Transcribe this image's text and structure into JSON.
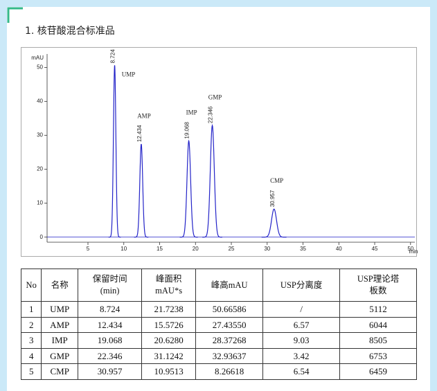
{
  "title": "1. 核苷酸混合标准品",
  "chart_data": {
    "type": "line",
    "y_label": "mAU",
    "x_label": "min",
    "x": [
      8.724,
      12.434,
      19.068,
      22.346,
      30.957
    ],
    "values": [
      50.66586,
      27.4355,
      28.37268,
      32.93637,
      8.26618
    ],
    "peak_labels": [
      "UMP",
      "AMP",
      "IMP",
      "GMP",
      "CMP"
    ],
    "color": "#2323c8",
    "xlim": [
      -0.7,
      50.6
    ],
    "ylim": [
      -1.5,
      54
    ],
    "xticks": [
      5,
      10,
      15,
      20,
      25,
      30,
      35,
      40,
      45,
      50
    ],
    "yticks": [
      0,
      10,
      20,
      30,
      40,
      50
    ]
  },
  "table": {
    "header": [
      [
        "No"
      ],
      [
        "名称"
      ],
      [
        "保留时间",
        "(min)"
      ],
      [
        "峰面积",
        "mAU*s"
      ],
      [
        "峰高mAU"
      ],
      [
        "USP分离度"
      ],
      [
        "USP理论塔",
        "板数"
      ]
    ],
    "rows": [
      [
        "1",
        "UMP",
        "8.724",
        "21.7238",
        "50.66586",
        "/",
        "5112"
      ],
      [
        "2",
        "AMP",
        "12.434",
        "15.5726",
        "27.43550",
        "6.57",
        "6044"
      ],
      [
        "3",
        "IMP",
        "19.068",
        "20.6280",
        "28.37268",
        "9.03",
        "8505"
      ],
      [
        "4",
        "GMP",
        "22.346",
        "31.1242",
        "32.93637",
        "3.42",
        "6753"
      ],
      [
        "5",
        "CMP",
        "30.957",
        "10.9513",
        "8.26618",
        "6.54",
        "6459"
      ]
    ]
  }
}
